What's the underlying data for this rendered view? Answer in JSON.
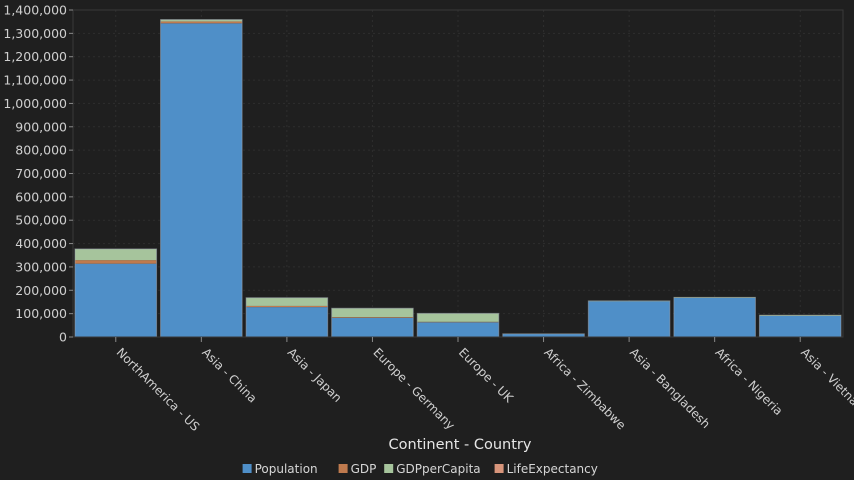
{
  "chart_data": {
    "type": "bar",
    "stacked": true,
    "title": "",
    "xlabel": "Continent - Country",
    "ylabel": "",
    "ylim": [
      0,
      1400000
    ],
    "ytick_step": 100000,
    "grid": true,
    "legend_position": "bottom",
    "categories": [
      "NorthAmerica - US",
      "Asia - China",
      "Asia - Japan",
      "Europe - Germany",
      "Europe - UK",
      "Africa - Zimbabwe",
      "Asia - Bangladesh",
      "Africa - Nigeria",
      "Asia - Vietnam"
    ],
    "series": [
      {
        "name": "Population",
        "color": "#4f8fc8",
        "values": [
          314000,
          1343000,
          128000,
          82000,
          63000,
          13000,
          153000,
          167000,
          90000
        ]
      },
      {
        "name": "GDP",
        "color": "#bf7a4e",
        "values": [
          15000,
          8000,
          5000,
          3000,
          2000,
          0,
          0,
          0,
          0
        ]
      },
      {
        "name": "GDPperCapita",
        "color": "#a6c49c",
        "values": [
          48000,
          8000,
          35000,
          38000,
          36000,
          500,
          1700,
          2600,
          3300
        ]
      },
      {
        "name": "LifeExpectancy",
        "color": "#d8957b",
        "values": [
          78,
          75,
          82,
          80,
          80,
          50,
          70,
          48,
          72
        ]
      }
    ]
  }
}
